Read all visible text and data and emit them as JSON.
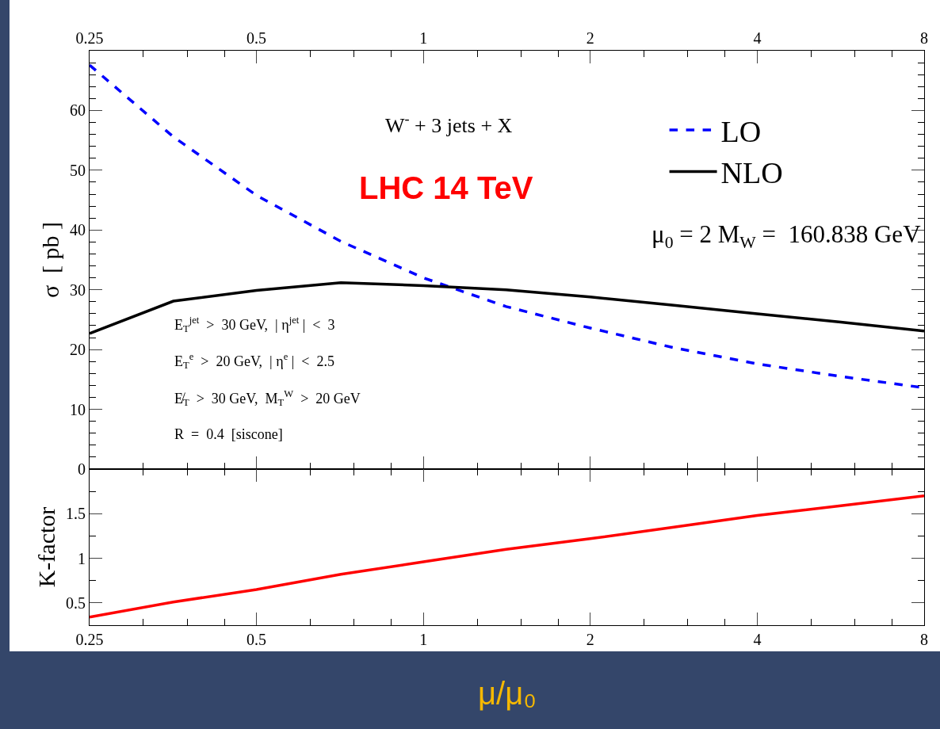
{
  "chart_data": [
    {
      "type": "line",
      "x": [
        0.25,
        0.354,
        0.5,
        0.71,
        1,
        1.41,
        2,
        2.83,
        4,
        5.66,
        8
      ],
      "series": [
        {
          "name": "LO",
          "color": "#0000ff",
          "line_style": "dashed",
          "values": [
            67.6,
            55.6,
            45.8,
            38.1,
            32.0,
            27.2,
            23.6,
            20.3,
            17.6,
            15.5,
            13.6
          ]
        },
        {
          "name": "NLO",
          "color": "#000000",
          "line_style": "solid",
          "values": [
            22.7,
            28.1,
            29.9,
            31.2,
            30.7,
            30.0,
            28.8,
            27.4,
            26.0,
            24.6,
            23.1
          ]
        }
      ],
      "log": "x",
      "xlim": [
        0.25,
        8
      ],
      "xticks": [
        0.25,
        0.5,
        1,
        2,
        4,
        8
      ],
      "ylim": [
        0,
        70
      ],
      "yticks": [
        0,
        10,
        20,
        30,
        40,
        50,
        60
      ],
      "ylabel": "σ  [ pb ]",
      "legend": "top right",
      "annotations": [
        "W$^{-}$ + 3 jets + X",
        "LHC 14 TeV",
        "μ$_{0}$ = 2 M$_{W}$ =  160.838 GeV",
        "E$_{T}$$^{jet}$  >  30 GeV,  | η$^{jet}$ |  <  3",
        "E$_{T}$$^{e}$  >  20 GeV,  | η$^{e}$ |  <  2.5",
        "E̸$_{T}$  >  30 GeV,  M$_{T}$$^{W}$  >  20 GeV",
        "R  =  0.4  [siscone]"
      ]
    },
    {
      "type": "line",
      "x": [
        0.25,
        0.354,
        0.5,
        0.71,
        1,
        1.41,
        2,
        2.83,
        4,
        5.66,
        8
      ],
      "series": [
        {
          "color": "#ff0000",
          "line_style": "solid",
          "values": [
            0.34,
            0.51,
            0.65,
            0.82,
            0.96,
            1.1,
            1.22,
            1.35,
            1.48,
            1.59,
            1.7
          ]
        }
      ],
      "log": "x",
      "xlim": [
        0.25,
        8
      ],
      "xticks": [
        0.25,
        0.5,
        1,
        2,
        4,
        8
      ],
      "ylim": [
        0.25,
        2.0
      ],
      "yticks": [
        0.5,
        1,
        1.5
      ],
      "ylabel": "K-factor",
      "xlabel": "μ/μ₀",
      "legend": false
    }
  ]
}
